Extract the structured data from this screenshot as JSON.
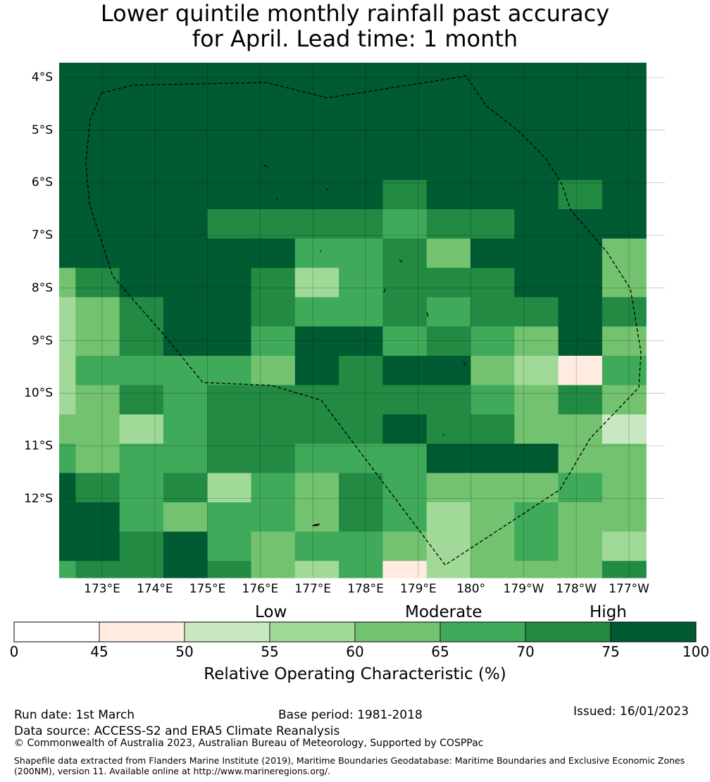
{
  "title": {
    "line1": "Lower quintile monthly rainfall past accuracy",
    "line2": "for April. Lead time: 1 month"
  },
  "map": {
    "lat_labels": [
      "4°S",
      "5°S",
      "6°S",
      "7°S",
      "8°S",
      "9°S",
      "10°S",
      "11°S",
      "12°S"
    ],
    "lon_labels": [
      "173°E",
      "174°E",
      "175°E",
      "176°E",
      "177°E",
      "178°E",
      "179°E",
      "180°",
      "179°W",
      "178°W",
      "177°W"
    ],
    "grid_values": [
      [
        80,
        80,
        80,
        80,
        80,
        80,
        80,
        80,
        80,
        80,
        80,
        80,
        80,
        80
      ],
      [
        80,
        80,
        80,
        80,
        80,
        80,
        80,
        80,
        80,
        80,
        80,
        80,
        80,
        80
      ],
      [
        80,
        80,
        80,
        80,
        80,
        80,
        80,
        80,
        80,
        80,
        80,
        80,
        80,
        80
      ],
      [
        80,
        80,
        80,
        80,
        80,
        80,
        80,
        80,
        80,
        80,
        80,
        80,
        80,
        80
      ],
      [
        80,
        80,
        80,
        80,
        80,
        80,
        80,
        80,
        72,
        80,
        80,
        80,
        72,
        80
      ],
      [
        80,
        80,
        80,
        80,
        72,
        72,
        72,
        72,
        67,
        72,
        72,
        80,
        80,
        80
      ],
      [
        80,
        80,
        80,
        80,
        80,
        80,
        67,
        67,
        72,
        62,
        80,
        80,
        80,
        62
      ],
      [
        62,
        72,
        80,
        80,
        80,
        72,
        57,
        67,
        72,
        72,
        72,
        80,
        80,
        62
      ],
      [
        57,
        62,
        72,
        80,
        80,
        72,
        67,
        67,
        72,
        67,
        72,
        72,
        80,
        72
      ],
      [
        57,
        62,
        72,
        80,
        80,
        67,
        80,
        80,
        67,
        72,
        67,
        62,
        80,
        62
      ],
      [
        57,
        67,
        67,
        67,
        67,
        62,
        80,
        72,
        80,
        80,
        62,
        57,
        47,
        67
      ],
      [
        57,
        62,
        72,
        67,
        72,
        72,
        72,
        72,
        72,
        72,
        67,
        62,
        72,
        62
      ],
      [
        62,
        62,
        57,
        67,
        72,
        72,
        72,
        72,
        80,
        72,
        72,
        62,
        62,
        52
      ],
      [
        67,
        62,
        67,
        67,
        72,
        72,
        67,
        67,
        67,
        80,
        80,
        80,
        62,
        62
      ],
      [
        80,
        72,
        67,
        72,
        57,
        67,
        62,
        72,
        67,
        62,
        62,
        62,
        67,
        62
      ],
      [
        80,
        80,
        67,
        62,
        67,
        67,
        62,
        72,
        67,
        57,
        62,
        67,
        62,
        62
      ],
      [
        80,
        80,
        72,
        80,
        67,
        62,
        67,
        67,
        62,
        57,
        62,
        67,
        62,
        57
      ],
      [
        67,
        72,
        72,
        80,
        72,
        62,
        57,
        67,
        47,
        57,
        62,
        62,
        62,
        72
      ]
    ],
    "boundary_path": [
      [
        144,
        132
      ],
      [
        187,
        121
      ],
      [
        378,
        117
      ],
      [
        465,
        139
      ],
      [
        662,
        108
      ],
      [
        690,
        150
      ],
      [
        735,
        185
      ],
      [
        775,
        225
      ],
      [
        798,
        262
      ],
      [
        810,
        298
      ],
      [
        862,
        358
      ],
      [
        895,
        410
      ],
      [
        910,
        500
      ],
      [
        907,
        550
      ],
      [
        838,
        622
      ],
      [
        795,
        695
      ],
      [
        632,
        802
      ],
      [
        456,
        568
      ],
      [
        385,
        547
      ],
      [
        288,
        543
      ],
      [
        235,
        478
      ],
      [
        160,
        392
      ],
      [
        145,
        345
      ],
      [
        127,
        290
      ],
      [
        122,
        230
      ],
      [
        128,
        170
      ]
    ],
    "island_paths": [
      [
        [
          374,
          234
        ],
        [
          380,
          237
        ]
      ],
      [
        [
          464,
          268
        ],
        [
          466,
          270
        ]
      ],
      [
        [
          393,
          282
        ],
        [
          394,
          284
        ]
      ],
      [
        [
          567,
          369
        ],
        [
          571,
          372
        ]
      ],
      [
        [
          454,
          356
        ],
        [
          456,
          357
        ]
      ],
      [
        [
          547,
          410
        ],
        [
          545,
          415
        ]
      ],
      [
        [
          606,
          443
        ],
        [
          608,
          450
        ]
      ],
      [
        [
          658,
          513
        ],
        [
          661,
          518
        ]
      ],
      [
        [
          629,
          616
        ],
        [
          630,
          618
        ]
      ],
      [
        [
          443,
          746
        ],
        [
          451,
          746
        ],
        [
          453,
          744
        ],
        [
          446,
          745
        ]
      ]
    ]
  },
  "colorbar": {
    "category_labels": [
      "Low",
      "Moderate",
      "High"
    ],
    "ticks": [
      "0",
      "45",
      "50",
      "55",
      "60",
      "65",
      "70",
      "75",
      "100"
    ],
    "colors": [
      "#ffffff",
      "#ffebe0",
      "#c8e8c2",
      "#a1d998",
      "#72c26f",
      "#40aa5b",
      "#228a42",
      "#005a32"
    ],
    "title": "Relative Operating Characteristic (%)"
  },
  "footer": {
    "run_date": "Run date: 1st March",
    "base_period": "Base period: 1981-2018",
    "issued": "Issued: 16/01/2023",
    "data_source": "Data source: ACCESS-S2 and ERA5 Climate Reanalysis",
    "copyright": "© Commonwealth of Australia 2023, Australian Bureau of Meteorology, Supported by COSPPac",
    "shapefile": "Shapefile data extracted from Flanders Marine Institute (2019), Maritime Boundaries Geodatabase: Maritime Boundaries and Exclusive Economic Zones (200NM), version 11. Available online at http://www.marineregions.org/."
  }
}
